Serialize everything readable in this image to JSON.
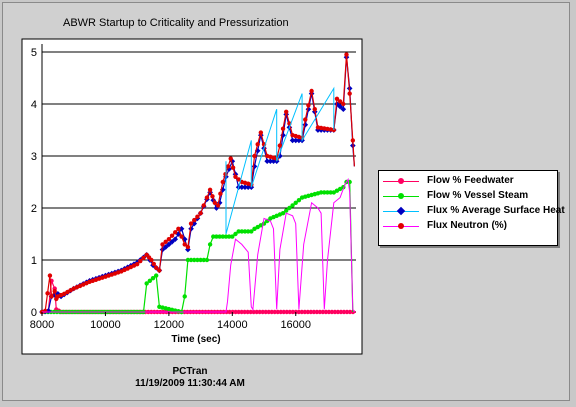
{
  "window": {
    "title": "ABWR Startup to Criticality and Pressurization"
  },
  "footer": {
    "app": "PCTran",
    "timestamp": "11/19/2009 11:30:44 AM"
  },
  "colors": {
    "feedwater": "#ff0060",
    "steam": "#00e000",
    "surface_heat": "#0000c0",
    "neutron": "#e00000",
    "surface_heat_line": "#00c0ff",
    "neutron_line": "#ff00ff"
  },
  "chart_data": {
    "type": "line",
    "title": "ABWR Startup to Criticality and Pressurization",
    "xlabel": "Time (sec)",
    "ylabel": "",
    "xlim": [
      8000,
      17900
    ],
    "ylim": [
      0,
      5
    ],
    "x_ticks": [
      "8000",
      "10000",
      "12000",
      "14000",
      "16000"
    ],
    "y_ticks": [
      "0",
      "1",
      "2",
      "3",
      "4",
      "5"
    ],
    "grid": "horizontal",
    "legend_placement": "right",
    "series": [
      {
        "name": "Flow % Feedwater",
        "color": "#ff0060",
        "marker": "circle",
        "points": [
          [
            8000,
            0
          ],
          [
            8200,
            0.02
          ],
          [
            8300,
            0.6
          ],
          [
            8400,
            0.45
          ],
          [
            8450,
            0.05
          ],
          [
            8600,
            0
          ],
          [
            17900,
            0
          ]
        ]
      },
      {
        "name": "Flow % Vessel Steam",
        "color": "#00e000",
        "marker": "circle",
        "points": [
          [
            8000,
            0
          ],
          [
            11200,
            0
          ],
          [
            11300,
            0.55
          ],
          [
            11600,
            0.7
          ],
          [
            11700,
            0.1
          ],
          [
            12400,
            0
          ],
          [
            12500,
            0.3
          ],
          [
            12600,
            1.0
          ],
          [
            13200,
            1.0
          ],
          [
            13300,
            1.3
          ],
          [
            13400,
            1.45
          ],
          [
            13600,
            1.45
          ],
          [
            14000,
            1.45
          ],
          [
            14200,
            1.55
          ],
          [
            14600,
            1.55
          ],
          [
            14700,
            1.6
          ],
          [
            15000,
            1.7
          ],
          [
            15200,
            1.8
          ],
          [
            15600,
            1.9
          ],
          [
            16000,
            2.1
          ],
          [
            16200,
            2.2
          ],
          [
            16800,
            2.3
          ],
          [
            17200,
            2.3
          ],
          [
            17500,
            2.4
          ],
          [
            17600,
            2.5
          ],
          [
            17700,
            2.5
          ],
          [
            17800,
            0
          ]
        ]
      },
      {
        "name": "Flux % Average Surface Heat",
        "color": "#0000c0",
        "marker": "diamond",
        "points": [
          [
            8000,
            0
          ],
          [
            8200,
            0.02
          ],
          [
            8300,
            0.3
          ],
          [
            8500,
            0.35
          ],
          [
            8600,
            0.3
          ],
          [
            9000,
            0.45
          ],
          [
            9500,
            0.6
          ],
          [
            10000,
            0.7
          ],
          [
            10500,
            0.8
          ],
          [
            11000,
            0.95
          ],
          [
            11300,
            1.1
          ],
          [
            11500,
            0.9
          ],
          [
            11700,
            0.8
          ],
          [
            11800,
            1.2
          ],
          [
            12200,
            1.4
          ],
          [
            12400,
            1.6
          ],
          [
            12600,
            1.2
          ],
          [
            12700,
            1.6
          ],
          [
            13000,
            1.9
          ],
          [
            13300,
            2.3
          ],
          [
            13500,
            2.0
          ],
          [
            13600,
            2.1
          ],
          [
            13800,
            2.6
          ],
          [
            14000,
            2.9
          ],
          [
            14200,
            2.4
          ],
          [
            14600,
            2.4
          ],
          [
            14700,
            2.8
          ],
          [
            14900,
            3.4
          ],
          [
            15100,
            2.9
          ],
          [
            15400,
            2.9
          ],
          [
            15500,
            3.0
          ],
          [
            15700,
            3.8
          ],
          [
            15900,
            3.3
          ],
          [
            16200,
            3.3
          ],
          [
            16300,
            3.6
          ],
          [
            16500,
            4.2
          ],
          [
            16700,
            3.5
          ],
          [
            17200,
            3.5
          ],
          [
            17300,
            4.0
          ],
          [
            17500,
            3.9
          ],
          [
            17600,
            4.9
          ],
          [
            17700,
            4.3
          ],
          [
            17800,
            3.2
          ],
          [
            17850,
            2.8
          ]
        ]
      },
      {
        "name": "Flux Neutron (%)",
        "color": "#e00000",
        "marker": "circle",
        "points": [
          [
            8000,
            0
          ],
          [
            8100,
            0.02
          ],
          [
            8250,
            0.7
          ],
          [
            8300,
            0.3
          ],
          [
            8400,
            0.4
          ],
          [
            8450,
            0.25
          ],
          [
            8500,
            0.3
          ],
          [
            8700,
            0.35
          ],
          [
            9000,
            0.45
          ],
          [
            9500,
            0.58
          ],
          [
            10000,
            0.68
          ],
          [
            10500,
            0.78
          ],
          [
            11000,
            0.92
          ],
          [
            11300,
            1.1
          ],
          [
            11450,
            1.0
          ],
          [
            11600,
            0.85
          ],
          [
            11700,
            0.8
          ],
          [
            11800,
            1.3
          ],
          [
            12000,
            1.4
          ],
          [
            12300,
            1.6
          ],
          [
            12500,
            1.3
          ],
          [
            12600,
            1.25
          ],
          [
            12700,
            1.7
          ],
          [
            13000,
            1.9
          ],
          [
            13300,
            2.35
          ],
          [
            13450,
            2.1
          ],
          [
            13550,
            2.05
          ],
          [
            13700,
            2.5
          ],
          [
            13950,
            2.95
          ],
          [
            14100,
            2.6
          ],
          [
            14300,
            2.5
          ],
          [
            14600,
            2.45
          ],
          [
            14700,
            3.0
          ],
          [
            14900,
            3.45
          ],
          [
            15100,
            3.0
          ],
          [
            15400,
            2.95
          ],
          [
            15500,
            3.2
          ],
          [
            15700,
            3.85
          ],
          [
            15900,
            3.4
          ],
          [
            16200,
            3.35
          ],
          [
            16300,
            3.7
          ],
          [
            16500,
            4.25
          ],
          [
            16700,
            3.55
          ],
          [
            17200,
            3.5
          ],
          [
            17300,
            4.1
          ],
          [
            17500,
            4.0
          ],
          [
            17600,
            4.95
          ],
          [
            17700,
            4.2
          ],
          [
            17800,
            3.3
          ],
          [
            17850,
            2.8
          ]
        ]
      },
      {
        "name": "",
        "color": "#ff00ff",
        "marker": "none",
        "points": [
          [
            8000,
            0
          ],
          [
            13800,
            0
          ],
          [
            13850,
            0.2
          ],
          [
            13950,
            0.9
          ],
          [
            14100,
            1.4
          ],
          [
            14300,
            1.3
          ],
          [
            14500,
            1.15
          ],
          [
            14600,
            0.1
          ],
          [
            14650,
            0.05
          ],
          [
            14800,
            1.1
          ],
          [
            15000,
            1.8
          ],
          [
            15200,
            1.75
          ],
          [
            15300,
            1.6
          ],
          [
            15400,
            0.05
          ],
          [
            15500,
            1.2
          ],
          [
            15700,
            1.9
          ],
          [
            15900,
            1.85
          ],
          [
            16000,
            1.7
          ],
          [
            16100,
            0.05
          ],
          [
            16250,
            1.3
          ],
          [
            16500,
            2.1
          ],
          [
            16700,
            2.0
          ],
          [
            16800,
            1.9
          ],
          [
            16900,
            0.05
          ],
          [
            17000,
            1.0
          ],
          [
            17200,
            2.1
          ],
          [
            17400,
            2.2
          ],
          [
            17550,
            2.45
          ],
          [
            17650,
            2.55
          ],
          [
            17700,
            2.3
          ],
          [
            17800,
            0.05
          ],
          [
            17850,
            0
          ]
        ]
      },
      {
        "name": "",
        "color": "#00c0ff",
        "marker": "none",
        "points": [
          [
            13800,
            2.9
          ],
          [
            13800,
            1.5
          ],
          [
            14600,
            3.3
          ],
          [
            14600,
            2.4
          ],
          [
            15400,
            3.9
          ],
          [
            15400,
            2.9
          ],
          [
            16200,
            4.2
          ],
          [
            16200,
            3.3
          ],
          [
            17200,
            4.3
          ],
          [
            17200,
            3.5
          ]
        ]
      }
    ]
  }
}
